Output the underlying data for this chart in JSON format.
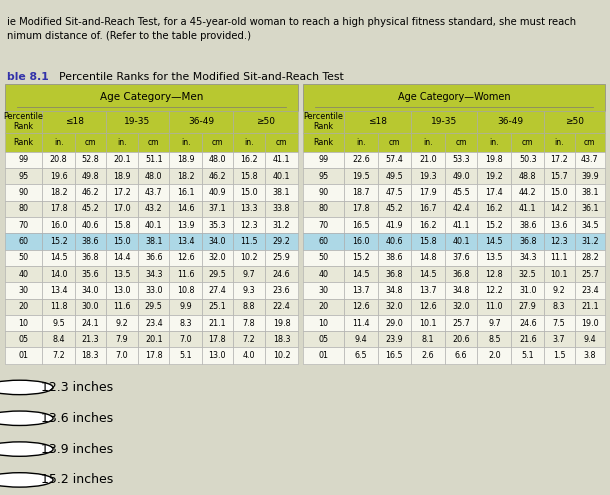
{
  "header_text": "ie Modified Sit-and-Reach Test, for a 45-year-old woman to reach a high physical fitness standard, she must reach\nnimum distance of. (Refer to the table provided.)",
  "title_bold": "ble 8.1",
  "title_rest": "  Percentile Ranks for the Modified Sit-and-Reach Test",
  "men_header": "Age Category—Men",
  "women_header": "Age Category—Women",
  "men_data": [
    [
      "99",
      "20.8",
      "52.8",
      "20.1",
      "51.1",
      "18.9",
      "48.0",
      "16.2",
      "41.1"
    ],
    [
      "95",
      "19.6",
      "49.8",
      "18.9",
      "48.0",
      "18.2",
      "46.2",
      "15.8",
      "40.1"
    ],
    [
      "90",
      "18.2",
      "46.2",
      "17.2",
      "43.7",
      "16.1",
      "40.9",
      "15.0",
      "38.1"
    ],
    [
      "80",
      "17.8",
      "45.2",
      "17.0",
      "43.2",
      "14.6",
      "37.1",
      "13.3",
      "33.8"
    ],
    [
      "70",
      "16.0",
      "40.6",
      "15.8",
      "40.1",
      "13.9",
      "35.3",
      "12.3",
      "31.2"
    ],
    [
      "60",
      "15.2",
      "38.6",
      "15.0",
      "38.1",
      "13.4",
      "34.0",
      "11.5",
      "29.2"
    ],
    [
      "50",
      "14.5",
      "36.8",
      "14.4",
      "36.6",
      "12.6",
      "32.0",
      "10.2",
      "25.9"
    ],
    [
      "40",
      "14.0",
      "35.6",
      "13.5",
      "34.3",
      "11.6",
      "29.5",
      "9.7",
      "24.6"
    ],
    [
      "30",
      "13.4",
      "34.0",
      "13.0",
      "33.0",
      "10.8",
      "27.4",
      "9.3",
      "23.6"
    ],
    [
      "20",
      "11.8",
      "30.0",
      "11.6",
      "29.5",
      "9.9",
      "25.1",
      "8.8",
      "22.4"
    ],
    [
      "10",
      "9.5",
      "24.1",
      "9.2",
      "23.4",
      "8.3",
      "21.1",
      "7.8",
      "19.8"
    ],
    [
      "05",
      "8.4",
      "21.3",
      "7.9",
      "20.1",
      "7.0",
      "17.8",
      "7.2",
      "18.3"
    ],
    [
      "01",
      "7.2",
      "18.3",
      "7.0",
      "17.8",
      "5.1",
      "13.0",
      "4.0",
      "10.2"
    ]
  ],
  "women_data": [
    [
      "99",
      "22.6",
      "57.4",
      "21.0",
      "53.3",
      "19.8",
      "50.3",
      "17.2",
      "43.7"
    ],
    [
      "95",
      "19.5",
      "49.5",
      "19.3",
      "49.0",
      "19.2",
      "48.8",
      "15.7",
      "39.9"
    ],
    [
      "90",
      "18.7",
      "47.5",
      "17.9",
      "45.5",
      "17.4",
      "44.2",
      "15.0",
      "38.1"
    ],
    [
      "80",
      "17.8",
      "45.2",
      "16.7",
      "42.4",
      "16.2",
      "41.1",
      "14.2",
      "36.1"
    ],
    [
      "70",
      "16.5",
      "41.9",
      "16.2",
      "41.1",
      "15.2",
      "38.6",
      "13.6",
      "34.5"
    ],
    [
      "60",
      "16.0",
      "40.6",
      "15.8",
      "40.1",
      "14.5",
      "36.8",
      "12.3",
      "31.2"
    ],
    [
      "50",
      "15.2",
      "38.6",
      "14.8",
      "37.6",
      "13.5",
      "34.3",
      "11.1",
      "28.2"
    ],
    [
      "40",
      "14.5",
      "36.8",
      "14.5",
      "36.8",
      "12.8",
      "32.5",
      "10.1",
      "25.7"
    ],
    [
      "30",
      "13.7",
      "34.8",
      "13.7",
      "34.8",
      "12.2",
      "31.0",
      "9.2",
      "23.4"
    ],
    [
      "20",
      "12.6",
      "32.0",
      "12.6",
      "32.0",
      "11.0",
      "27.9",
      "8.3",
      "21.1"
    ],
    [
      "10",
      "11.4",
      "29.0",
      "10.1",
      "25.7",
      "9.7",
      "24.6",
      "7.5",
      "19.0"
    ],
    [
      "05",
      "9.4",
      "23.9",
      "8.1",
      "20.6",
      "8.5",
      "21.6",
      "3.7",
      "9.4"
    ],
    [
      "01",
      "6.5",
      "16.5",
      "2.6",
      "6.6",
      "2.0",
      "5.1",
      "1.5",
      "3.8"
    ]
  ],
  "highlight_row": 5,
  "highlight_color": "#add8e6",
  "header_color": "#b8c830",
  "answer_options": [
    "12.3 inches",
    "13.6 inches",
    "13.9 inches",
    "15.2 inches"
  ],
  "bg_color": "#d8d8c8",
  "bottom_bg": "#e8e8e0",
  "row_colors": [
    "#ffffff",
    "#e8e8d8"
  ]
}
